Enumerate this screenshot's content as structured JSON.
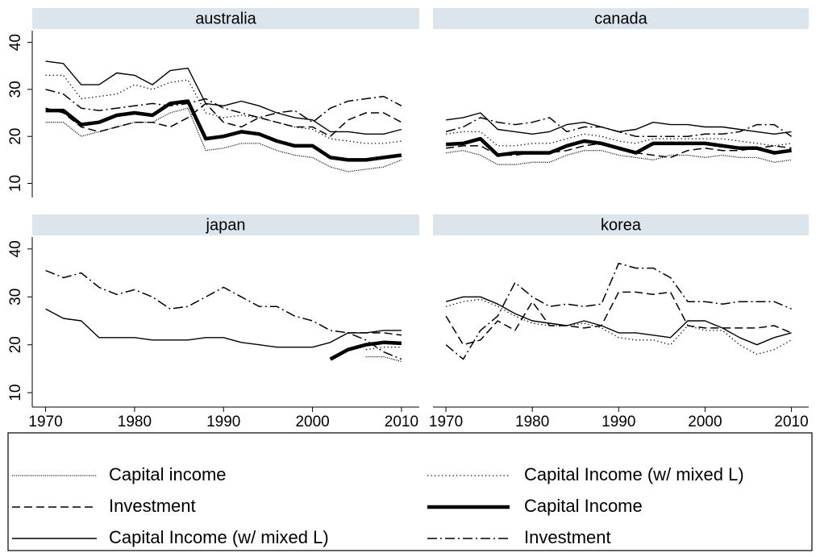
{
  "chart_data": [
    {
      "type": "line",
      "title": "australia",
      "xlim": [
        1968.5,
        2012
      ],
      "ylim": [
        7,
        42.5
      ],
      "yticks": [
        10,
        20,
        30,
        40
      ],
      "x": [
        1970,
        1972,
        1974,
        1976,
        1978,
        1980,
        1982,
        1984,
        1986,
        1988,
        1990,
        1992,
        1994,
        1996,
        1998,
        2000,
        2002,
        2004,
        2006,
        2008,
        2010
      ],
      "series": [
        {
          "name": "Capital income",
          "style": "dotted-dense",
          "color": "#000000",
          "values": [
            23,
            23,
            20,
            21,
            22,
            23,
            23,
            25,
            26,
            17,
            17.5,
            18.5,
            18.5,
            17,
            16,
            15.5,
            13.5,
            12.5,
            13,
            13.5,
            15
          ]
        },
        {
          "name": "Investment",
          "style": "dashed",
          "color": "#000000",
          "values": [
            26,
            25,
            22,
            21,
            22,
            23,
            23,
            22,
            24,
            27,
            23,
            22,
            24,
            23,
            22,
            22,
            20,
            23.5,
            25,
            25,
            23
          ]
        },
        {
          "name": "Capital Income (w/ mixed L)",
          "style": "solid",
          "color": "#000000",
          "values": [
            36,
            35.5,
            31,
            31,
            33.5,
            33,
            31,
            34,
            34.5,
            27,
            26.5,
            27.5,
            26.5,
            25,
            24,
            23.5,
            21,
            21,
            20.5,
            20.5,
            21.5
          ]
        },
        {
          "name": "Capital Income (w/ mixed L)",
          "style": "dotted",
          "color": "#000000",
          "values": [
            33,
            33,
            28,
            28.5,
            29,
            31,
            30,
            31.5,
            32,
            25,
            24,
            24.5,
            24,
            23,
            22,
            21.5,
            19.5,
            19,
            18.5,
            18.5,
            19
          ]
        },
        {
          "name": "Capital Income",
          "style": "thick",
          "color": "#000000",
          "values": [
            25.5,
            25.5,
            22.5,
            23,
            24.5,
            25,
            24.5,
            27,
            27.5,
            19.5,
            20,
            21,
            20.5,
            19,
            18,
            18,
            15.5,
            15,
            15,
            15.5,
            16
          ]
        },
        {
          "name": "Investment",
          "style": "dashdot",
          "color": "#000000",
          "values": [
            30,
            29,
            26,
            25.5,
            26,
            26.5,
            27,
            26.5,
            27,
            28,
            26,
            25,
            24,
            25,
            25.5,
            23,
            26,
            27.5,
            28,
            28.5,
            26.5
          ]
        }
      ]
    },
    {
      "type": "line",
      "title": "canada",
      "xlim": [
        1968.5,
        2012
      ],
      "ylim": [
        7,
        42.5
      ],
      "x": [
        1970,
        1972,
        1974,
        1976,
        1978,
        1980,
        1982,
        1984,
        1986,
        1988,
        1990,
        1992,
        1994,
        1996,
        1998,
        2000,
        2002,
        2004,
        2006,
        2008,
        2010
      ],
      "series": [
        {
          "name": "Capital income",
          "style": "dotted-dense",
          "color": "#000000",
          "values": [
            16.5,
            17,
            16,
            14,
            14,
            14.5,
            14.5,
            16,
            17,
            17,
            16,
            15.5,
            15,
            16,
            16,
            15.5,
            16,
            15.5,
            15.5,
            14.5,
            15
          ]
        },
        {
          "name": "Investment",
          "style": "dashed",
          "color": "#000000",
          "values": [
            17.5,
            18,
            18,
            16,
            16,
            16.5,
            16.5,
            17,
            18,
            18.5,
            17.5,
            16.5,
            16,
            15.5,
            17,
            17.5,
            17,
            17,
            17.5,
            18,
            17.5
          ]
        },
        {
          "name": "Capital Income (w/ mixed L)",
          "style": "solid",
          "color": "#000000",
          "values": [
            23.5,
            24,
            25,
            21.5,
            21,
            20.5,
            21,
            22.5,
            23,
            22,
            21,
            21.5,
            23,
            22.5,
            22.5,
            22,
            22,
            21.5,
            21,
            20.5,
            21
          ]
        },
        {
          "name": "Capital Income (w/ mixed L)",
          "style": "dotted",
          "color": "#000000",
          "values": [
            20.5,
            21,
            21,
            18,
            18,
            18.5,
            18.5,
            19.5,
            20.5,
            20,
            19,
            18.5,
            19.5,
            19.5,
            19.5,
            19.5,
            19.5,
            19,
            18.5,
            18,
            18.5
          ]
        },
        {
          "name": "Capital Income",
          "style": "thick",
          "color": "#000000",
          "values": [
            18.3,
            18.5,
            19.5,
            16,
            16.5,
            16.5,
            16.5,
            18,
            19,
            18.5,
            17.5,
            16.5,
            18.5,
            18.5,
            18.5,
            18.5,
            18,
            17.5,
            17.5,
            16.5,
            17
          ]
        },
        {
          "name": "Investment",
          "style": "dashdot",
          "color": "#000000",
          "values": [
            21,
            22,
            24,
            23,
            22.5,
            23,
            24,
            21,
            22,
            22,
            21,
            20,
            20,
            20,
            20,
            20.5,
            20.5,
            21,
            22.5,
            22.5,
            20
          ]
        }
      ]
    },
    {
      "type": "line",
      "title": "japan",
      "xlim": [
        1968.5,
        2012
      ],
      "ylim": [
        7,
        42.5
      ],
      "yticks": [
        10,
        20,
        30,
        40
      ],
      "xticks": [
        1970,
        1980,
        1990,
        2000,
        2010
      ],
      "x": [
        1970,
        1972,
        1974,
        1976,
        1978,
        1980,
        1982,
        1984,
        1986,
        1988,
        1990,
        1992,
        1994,
        1996,
        1998,
        2000,
        2002,
        2004,
        2006,
        2008,
        2010
      ],
      "series": [
        {
          "name": "Capital income",
          "style": "dotted-dense",
          "color": "#000000",
          "values": [
            null,
            null,
            null,
            null,
            null,
            null,
            null,
            null,
            null,
            null,
            null,
            null,
            null,
            null,
            null,
            null,
            null,
            null,
            17.5,
            17.5,
            16.5
          ]
        },
        {
          "name": "Investment",
          "style": "dashed",
          "color": "#000000",
          "values": [
            null,
            null,
            null,
            null,
            null,
            null,
            null,
            null,
            null,
            null,
            null,
            null,
            null,
            null,
            null,
            null,
            null,
            22.5,
            22.5,
            22.5,
            22
          ]
        },
        {
          "name": "Capital Income (w/ mixed L)",
          "style": "solid",
          "color": "#000000",
          "values": [
            27.5,
            25.5,
            25,
            21.5,
            21.5,
            21.5,
            21,
            21,
            21,
            21.5,
            21.5,
            20.5,
            20,
            19.5,
            19.5,
            19.5,
            20.5,
            22.5,
            22.5,
            23,
            23
          ]
        },
        {
          "name": "Capital Income (w/ mixed L)",
          "style": "dotted",
          "color": "#000000",
          "values": [
            null,
            null,
            null,
            null,
            null,
            null,
            null,
            null,
            null,
            null,
            null,
            null,
            null,
            null,
            null,
            null,
            null,
            null,
            19,
            19.5,
            19.5
          ]
        },
        {
          "name": "Capital Income",
          "style": "thick",
          "color": "#000000",
          "values": [
            null,
            null,
            null,
            null,
            null,
            null,
            null,
            null,
            null,
            null,
            null,
            null,
            null,
            null,
            null,
            null,
            17,
            19,
            20,
            20.5,
            20.3
          ]
        },
        {
          "name": "Investment",
          "style": "dashdot",
          "color": "#000000",
          "values": [
            35.5,
            34,
            35,
            32,
            30.5,
            31.5,
            30,
            27.5,
            28,
            30,
            32,
            30,
            28,
            28,
            26,
            25,
            23,
            22.5,
            21,
            18.5,
            17
          ]
        }
      ]
    },
    {
      "type": "line",
      "title": "korea",
      "xlim": [
        1968.5,
        2012
      ],
      "ylim": [
        7,
        42.5
      ],
      "xticks": [
        1970,
        1980,
        1990,
        2000,
        2010
      ],
      "x": [
        1970,
        1972,
        1974,
        1976,
        1978,
        1980,
        1982,
        1984,
        1986,
        1988,
        1990,
        1992,
        1994,
        1996,
        1998,
        2000,
        2002,
        2004,
        2006,
        2008,
        2010
      ],
      "series": [
        {
          "name": "Capital income",
          "style": "dotted-dense",
          "color": "#000000",
          "values": [
            null,
            null,
            null,
            null,
            null,
            null,
            null,
            null,
            null,
            null,
            null,
            null,
            null,
            null,
            null,
            null,
            null,
            null,
            null,
            null,
            null
          ]
        },
        {
          "name": "Investment",
          "style": "dashed",
          "color": "#000000",
          "values": [
            26,
            20,
            21,
            25,
            23,
            29,
            24,
            24,
            23.5,
            24,
            31,
            31,
            30.5,
            31,
            24,
            23.5,
            23.5,
            23.5,
            23.5,
            24,
            22.5
          ]
        },
        {
          "name": "Capital Income (w/ mixed L)",
          "style": "solid",
          "color": "#000000",
          "values": [
            29,
            30,
            30,
            28.5,
            26.5,
            25,
            24.5,
            24,
            25,
            24,
            22.5,
            22.5,
            22,
            21.5,
            25,
            25,
            23.5,
            21.5,
            20,
            21.5,
            22.5
          ]
        },
        {
          "name": "Capital Income (w/ mixed L)",
          "style": "dotted",
          "color": "#000000",
          "values": [
            28,
            29,
            29.5,
            28,
            26,
            24.5,
            24,
            24,
            24.5,
            23.5,
            21.5,
            21,
            21,
            20,
            24,
            23,
            23,
            20,
            18,
            19,
            21
          ]
        },
        {
          "name": "Capital Income",
          "style": "thick",
          "color": "#000000",
          "values": [
            null,
            null,
            null,
            null,
            null,
            null,
            null,
            null,
            null,
            null,
            null,
            null,
            null,
            null,
            null,
            null,
            null,
            null,
            null,
            null,
            null
          ]
        },
        {
          "name": "Investment",
          "style": "dashdot",
          "color": "#000000",
          "values": [
            20,
            17,
            23,
            26,
            33,
            30,
            28,
            28.5,
            28,
            28.5,
            37,
            36,
            36,
            34,
            29,
            29,
            28.5,
            29,
            29,
            29,
            27.5
          ]
        }
      ]
    }
  ]
}
